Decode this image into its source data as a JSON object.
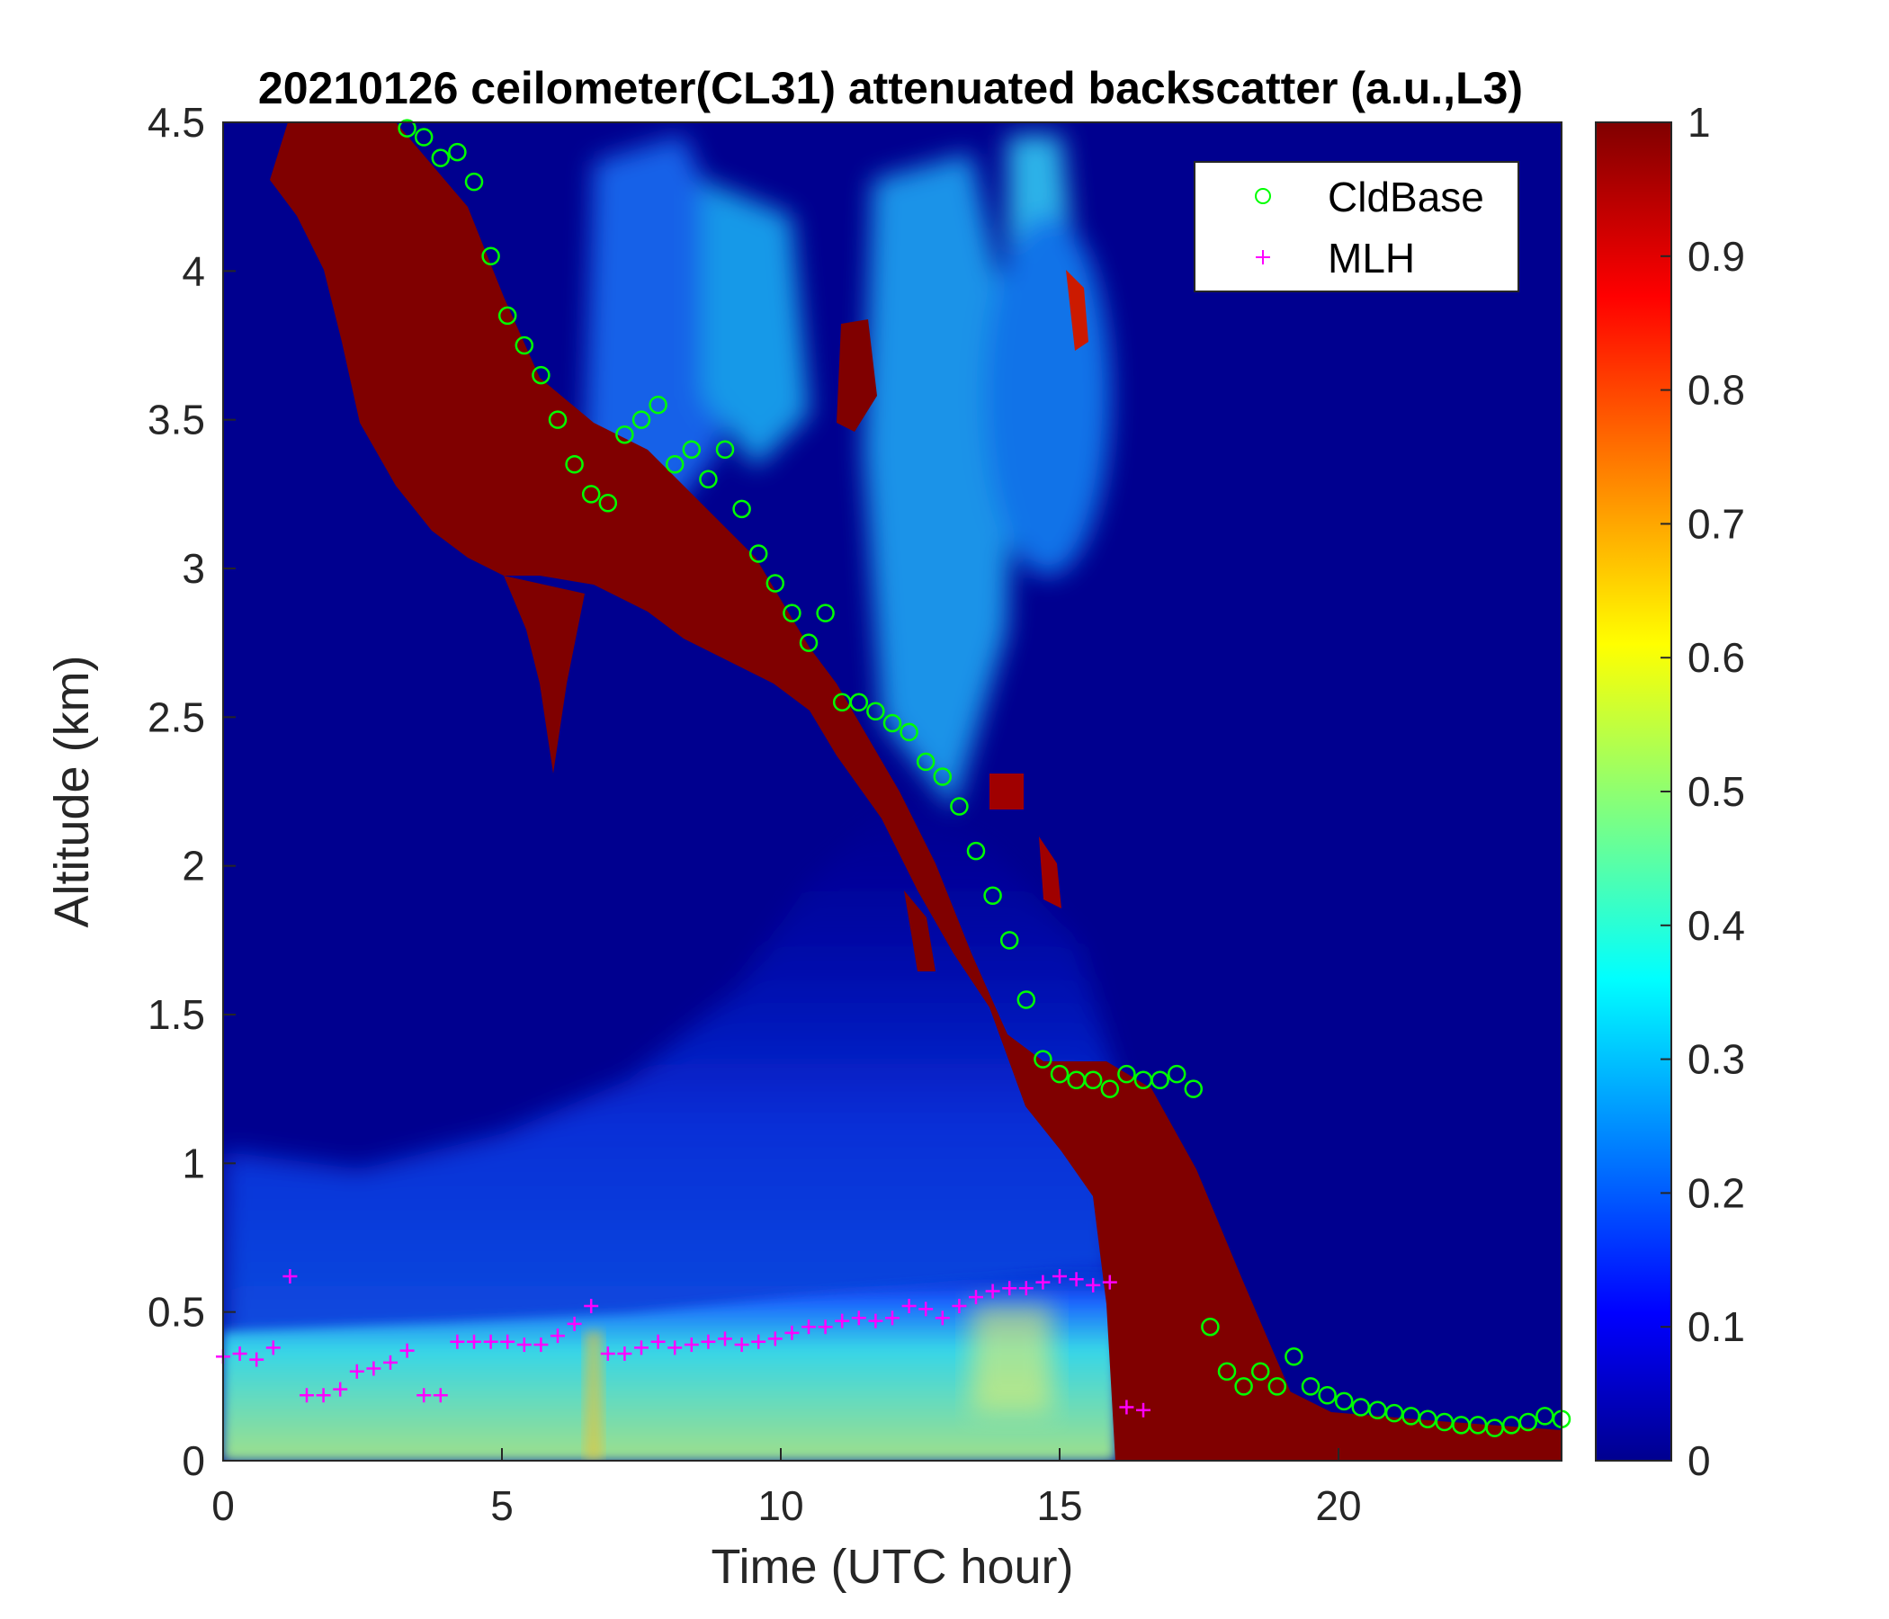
{
  "chart_data": {
    "type": "heatmap",
    "title": "20210126 ceilometer(CL31) attenuated backscatter (a.u.,L3)",
    "xlabel": "Time (UTC hour)",
    "ylabel": "Altitude (km)",
    "xlim": [
      0,
      24
    ],
    "ylim": [
      0,
      4.5
    ],
    "xticks": [
      "0",
      "5",
      "10",
      "15",
      "20"
    ],
    "yticks": [
      "0",
      "0.5",
      "1",
      "1.5",
      "2",
      "2.5",
      "3",
      "3.5",
      "4",
      "4.5"
    ],
    "colorbar": {
      "colormap": "jet",
      "range": [
        0,
        1
      ],
      "ticks": [
        "0",
        "0.1",
        "0.2",
        "0.3",
        "0.4",
        "0.5",
        "0.6",
        "0.7",
        "0.8",
        "0.9",
        "1"
      ]
    },
    "legend": {
      "placement": "top-right",
      "entries": [
        {
          "label": "CldBase",
          "marker": "circle",
          "color": "#00ff00"
        },
        {
          "label": "MLH",
          "marker": "plus",
          "color": "#ff00ff"
        }
      ]
    },
    "series": [
      {
        "name": "CldBase",
        "x": [
          3.3,
          3.6,
          3.9,
          4.2,
          4.5,
          4.8,
          5.1,
          5.4,
          5.7,
          6.0,
          6.3,
          6.6,
          6.9,
          7.2,
          7.5,
          7.8,
          8.1,
          8.4,
          8.7,
          9.0,
          9.3,
          9.6,
          9.9,
          10.2,
          10.5,
          10.8,
          11.1,
          11.4,
          11.7,
          12.0,
          12.3,
          12.6,
          12.9,
          13.2,
          13.5,
          13.8,
          14.1,
          14.4,
          14.7,
          15.0,
          15.3,
          15.6,
          15.9,
          16.2,
          16.5,
          16.8,
          17.1,
          17.4,
          17.7,
          18.0,
          18.3,
          18.6,
          18.9,
          19.2,
          19.5,
          19.8,
          20.1,
          20.4,
          20.7,
          21.0,
          21.3,
          21.6,
          21.9,
          22.2,
          22.5,
          22.8,
          23.1,
          23.4,
          23.7,
          24.0
        ],
        "y": [
          4.48,
          4.45,
          4.38,
          4.4,
          4.3,
          4.05,
          3.85,
          3.75,
          3.65,
          3.5,
          3.35,
          3.25,
          3.22,
          3.45,
          3.5,
          3.55,
          3.35,
          3.4,
          3.3,
          3.4,
          3.2,
          3.05,
          2.95,
          2.85,
          2.75,
          2.85,
          2.55,
          2.55,
          2.52,
          2.48,
          2.45,
          2.35,
          2.3,
          2.2,
          2.05,
          1.9,
          1.75,
          1.55,
          1.35,
          1.3,
          1.28,
          1.28,
          1.25,
          1.3,
          1.28,
          1.28,
          1.3,
          1.25,
          0.45,
          0.3,
          0.25,
          0.3,
          0.25,
          0.35,
          0.25,
          0.22,
          0.2,
          0.18,
          0.17,
          0.16,
          0.15,
          0.14,
          0.13,
          0.12,
          0.12,
          0.11,
          0.12,
          0.13,
          0.15,
          0.14
        ]
      },
      {
        "name": "MLH",
        "x": [
          0.0,
          0.3,
          0.6,
          0.9,
          1.2,
          1.5,
          1.8,
          2.1,
          2.4,
          2.7,
          3.0,
          3.3,
          3.6,
          3.9,
          4.2,
          4.5,
          4.8,
          5.1,
          5.4,
          5.7,
          6.0,
          6.3,
          6.6,
          6.9,
          7.2,
          7.5,
          7.8,
          8.1,
          8.4,
          8.7,
          9.0,
          9.3,
          9.6,
          9.9,
          10.2,
          10.5,
          10.8,
          11.1,
          11.4,
          11.7,
          12.0,
          12.3,
          12.6,
          12.9,
          13.2,
          13.5,
          13.8,
          14.1,
          14.4,
          14.7,
          15.0,
          15.3,
          15.6,
          15.9,
          16.2,
          16.5
        ],
        "y": [
          0.35,
          0.36,
          0.34,
          0.38,
          0.62,
          0.22,
          0.22,
          0.24,
          0.3,
          0.31,
          0.33,
          0.37,
          0.22,
          0.22,
          0.4,
          0.4,
          0.4,
          0.4,
          0.39,
          0.39,
          0.42,
          0.46,
          0.52,
          0.36,
          0.36,
          0.38,
          0.4,
          0.38,
          0.39,
          0.4,
          0.41,
          0.39,
          0.4,
          0.41,
          0.43,
          0.45,
          0.45,
          0.47,
          0.48,
          0.47,
          0.48,
          0.52,
          0.51,
          0.48,
          0.52,
          0.55,
          0.57,
          0.58,
          0.58,
          0.6,
          0.62,
          0.61,
          0.59,
          0.6,
          0.18,
          0.17
        ]
      }
    ]
  }
}
